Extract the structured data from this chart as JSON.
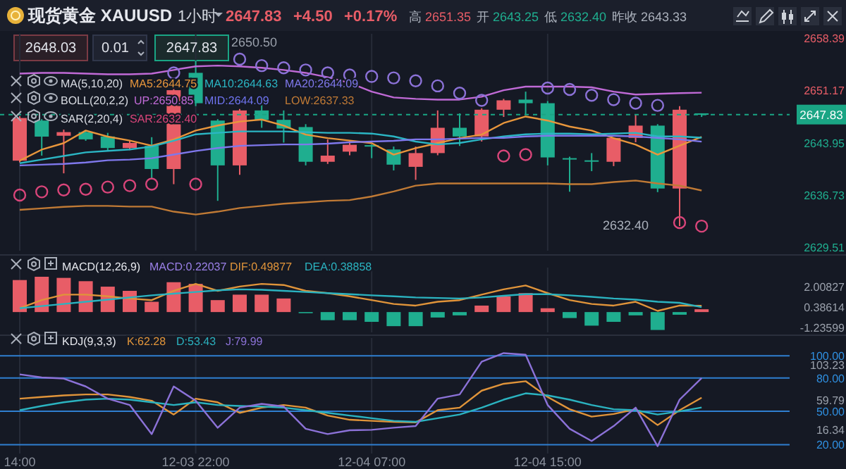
{
  "chart_data": [
    {
      "type": "candlestick",
      "title": "现货黄金 XAUUSD",
      "categories": [
        null,
        null,
        null,
        null,
        null,
        null,
        null,
        null,
        null,
        null,
        null,
        null,
        null,
        null,
        null,
        null,
        null,
        null,
        null,
        null,
        null,
        null,
        null,
        null,
        null,
        null,
        null,
        null,
        null,
        null,
        null,
        null
      ],
      "ohlc": [
        [
          2641.45,
          2647.6,
          2641.2,
          2647.35
        ],
        [
          2647.0,
          2647.2,
          2642.15,
          2644.78
        ],
        [
          2644.9,
          2645.75,
          2639.7,
          2645.4
        ],
        [
          2645.4,
          2645.6,
          2644.2,
          2644.4
        ],
        [
          2644.8,
          2645.3,
          2642.9,
          2643.2
        ],
        [
          2643.2,
          2644.3,
          2642.9,
          2643.9
        ],
        [
          2643.5,
          2644.7,
          2639.0,
          2640.3
        ],
        [
          2640.3,
          2651.5,
          2638.2,
          2651.2
        ],
        [
          2653.6,
          2655.3,
          2649.0,
          2649.4
        ],
        [
          2647.0,
          2647.2,
          2635.9,
          2640.8
        ],
        [
          2640.8,
          2648.6,
          2639.5,
          2648.4
        ],
        [
          2648.4,
          2649.5,
          2646.0,
          2647.1
        ],
        [
          2647.1,
          2648.4,
          2643.95,
          2645.9
        ],
        [
          2646.1,
          2646.5,
          2640.8,
          2641.3
        ],
        [
          2641.3,
          2644.4,
          2641.0,
          2642.15
        ],
        [
          2642.7,
          2644.2,
          2642.2,
          2643.65
        ],
        [
          2643.6,
          2643.7,
          2641.8,
          2643.4
        ],
        [
          2643.0,
          2643.4,
          2640.1,
          2640.9
        ],
        [
          2640.6,
          2643.4,
          2638.8,
          2642.5
        ],
        [
          2642.5,
          2648.4,
          2642.2,
          2646.0
        ],
        [
          2646.0,
          2648.0,
          2643.5,
          2644.8
        ],
        [
          2644.8,
          2648.7,
          2644.1,
          2648.5
        ],
        [
          2648.5,
          2650.0,
          2647.5,
          2649.8
        ],
        [
          2649.9,
          2651.0,
          2647.8,
          2649.4
        ],
        [
          2649.4,
          2649.7,
          2640.8,
          2641.9
        ],
        [
          2641.8,
          2642.0,
          2637.15,
          2641.7
        ],
        [
          2641.5,
          2642.5,
          2640.0,
          2641.4
        ],
        [
          2641.3,
          2644.6,
          2640.7,
          2644.6
        ],
        [
          2644.6,
          2647.8,
          2644.0,
          2646.3
        ],
        [
          2646.3,
          2646.5,
          2637.1,
          2637.6
        ],
        [
          2637.6,
          2649.0,
          2632.4,
          2648.5
        ],
        [
          2648.0,
          2648.0,
          2647.5,
          2647.83
        ]
      ],
      "ylim": [
        2629,
        2659
      ],
      "yticks": [
        2658.39,
        2651.17,
        2643.95,
        2636.73,
        2629.51
      ],
      "grid": "x",
      "tick_labels": "y",
      "ref_lines": [
        {
          "axis": "y",
          "value": 2647.83,
          "label": "2647.83",
          "color": "#1aa584",
          "line_style": "dashed"
        }
      ],
      "annotations": [
        "1小时",
        "2647.83",
        "+4.50",
        "+0.17%",
        "高 2651.35",
        "开 2643.25",
        "低 2632.40",
        "昨收 2643.33",
        "2648.03",
        "0.01",
        "2647.83",
        "MA(5,10,20)",
        "BOLL(20,2,2)",
        "SAR(2,20,4)",
        "MID:2644.09",
        "2650.50",
        "2632.40"
      ],
      "series": [
        {
          "type": "line",
          "name": "MA5:2644.75",
          "color": "#e8963c",
          "values": [
            2641.45,
            2642.98,
            2643.88,
            2645.62,
            2644.78,
            2644.23,
            2643.53,
            2644.37,
            2645.62,
            2646.31,
            2646.86,
            2647.14,
            2646.31,
            2645.06,
            2644.57,
            2644.23,
            2643.88,
            2642.28,
            2643.19,
            2643.88,
            2644.57,
            2645.06,
            2646.66,
            2647.56,
            2647.0,
            2646.17,
            2645.62,
            2644.57,
            2643.67,
            2642.28,
            2643.53,
            2644.75
          ]
        },
        {
          "type": "line",
          "name": "MA10:2644.63",
          "color": "#2bb6c4",
          "values": [
            2641.1,
            2641.6,
            2642.1,
            2642.6,
            2642.8,
            2643.0,
            2643.4,
            2644.2,
            2645.1,
            2645.3,
            2645.5,
            2645.5,
            2645.5,
            2645.4,
            2645.3,
            2645.3,
            2645.2,
            2644.8,
            2644.1,
            2643.7,
            2643.9,
            2644.4,
            2644.8,
            2645.1,
            2645.2,
            2645.2,
            2645.1,
            2645.2,
            2645.3,
            2644.8,
            2644.8,
            2644.63
          ]
        },
        {
          "type": "line",
          "name": "MA20:2644.09",
          "color": "#7f78ec",
          "values": [
            2640.8,
            2640.9,
            2641.0,
            2641.2,
            2641.5,
            2641.6,
            2641.8,
            2642.3,
            2642.8,
            2643.2,
            2643.5,
            2643.6,
            2643.7,
            2643.7,
            2643.8,
            2644.0,
            2644.1,
            2644.2,
            2644.4,
            2644.4,
            2644.5,
            2644.6,
            2644.6,
            2644.8,
            2644.9,
            2644.9,
            2644.9,
            2644.9,
            2644.8,
            2644.6,
            2644.4,
            2644.09
          ]
        },
        {
          "type": "line",
          "name": "UP:2650.85",
          "color": "#c06ad6",
          "values": [
            2653.5,
            2653.6,
            2653.6,
            2653.5,
            2653.4,
            2653.4,
            2653.5,
            2654.0,
            2654.5,
            2654.6,
            2654.5,
            2654.3,
            2654.0,
            2653.6,
            2653.0,
            2652.2,
            2651.0,
            2650.2,
            2650.0,
            2649.9,
            2649.9,
            2650.3,
            2651.2,
            2651.7,
            2651.7,
            2651.7,
            2651.6,
            2651.0,
            2650.6,
            2650.7,
            2650.8,
            2650.85
          ]
        },
        {
          "type": "line",
          "name": "LOW:2637.33",
          "color": "#c07a35",
          "values": [
            2634.65,
            2634.86,
            2635.07,
            2635.2,
            2635.2,
            2635.1,
            2635.1,
            2634.4,
            2634.0,
            2634.4,
            2634.9,
            2635.2,
            2635.5,
            2635.7,
            2635.9,
            2636.0,
            2636.5,
            2637.2,
            2638.0,
            2638.3,
            2638.3,
            2638.3,
            2638.3,
            2638.3,
            2638.3,
            2638.2,
            2638.2,
            2638.5,
            2638.7,
            2638.3,
            2638.0,
            2637.33
          ]
        },
        {
          "type": "scatter",
          "name": "SAR:2632.40",
          "color": "#d9457a",
          "marker": "circle",
          "colors": [
            "#d9457a",
            "#d9457a",
            "#d9457a",
            "#d9457a",
            "#d9457a",
            "#d9457a",
            "#d9457a",
            "#8c72d8",
            "#d9457a",
            null,
            "#8c72d8",
            "#8c72d8",
            "#8c72d8",
            "#8c72d8",
            "#8c72d8",
            "#8c72d8",
            "#8c72d8",
            "#8c72d8",
            "#8c72d8",
            "#8c72d8",
            "#8c72d8",
            "#8c72d8",
            "#d9457a",
            "#d9457a",
            "#8c72d8",
            "#8c72d8",
            "#8c72d8",
            "#8c72d8",
            "#8c72d8",
            "#8c72d8",
            "#d9457a",
            "#d9457a"
          ],
          "values": [
            2636.7,
            2637.15,
            2637.4,
            2637.5,
            2637.8,
            2638.0,
            2638.2,
            2653.6,
            2638.2,
            null,
            2655.5,
            2654.6,
            2654.3,
            2654.0,
            2653.6,
            2653.3,
            2653.1,
            2652.9,
            2652.5,
            2651.8,
            2650.8,
            2649.8,
            2642.1,
            2642.3,
            2651.5,
            2651.3,
            2650.5,
            2649.9,
            2649.4,
            2649.1,
            2632.9,
            2632.4
          ]
        }
      ]
    },
    {
      "type": "bar",
      "title": "MACD(12,26,9)",
      "categories": [
        null,
        null,
        null,
        null,
        null,
        null,
        null,
        null,
        null,
        null,
        null,
        null,
        null,
        null,
        null,
        null,
        null,
        null,
        null,
        null,
        null,
        null,
        null,
        null,
        null,
        null,
        null,
        null,
        null,
        null,
        null,
        null
      ],
      "ylim": [
        -1.6,
        3.5
      ],
      "yticks": [
        2.00827,
        0.38614,
        -1.23599
      ],
      "grid": "x",
      "tick_labels": "y",
      "series": [
        {
          "name": "MACD:0.22037",
          "color": "#9b80e8",
          "values": [
            2.52,
            2.78,
            2.69,
            2.43,
            2.0,
            1.67,
            0.81,
            2.35,
            2.22,
            0.94,
            1.37,
            1.37,
            1.07,
            -0.05,
            -0.64,
            -0.64,
            -0.77,
            -1.11,
            -1.11,
            -0.43,
            -0.26,
            0.51,
            1.24,
            1.49,
            0.3,
            -0.47,
            -1.07,
            -0.77,
            -0.26,
            -1.41,
            -0.21,
            0.22037
          ],
          "colors": [
            "#e85d67",
            "#e85d67",
            "#e85d67",
            "#e85d67",
            "#e85d67",
            "#e85d67",
            "#e85d67",
            "#e85d67",
            "#e85d67",
            "#e85d67",
            "#e85d67",
            "#e85d67",
            "#e85d67",
            "#1fae8f",
            "#1fae8f",
            "#1fae8f",
            "#1fae8f",
            "#1fae8f",
            "#1fae8f",
            "#1fae8f",
            "#1fae8f",
            "#e85d67",
            "#e85d67",
            "#e85d67",
            "#e85d67",
            "#1fae8f",
            "#1fae8f",
            "#1fae8f",
            "#1fae8f",
            "#1fae8f",
            "#1fae8f",
            "#e85d67"
          ]
        },
        {
          "type": "line",
          "name": "DIF:0.49877",
          "color": "#e0943a",
          "values": [
            0.3,
            0.94,
            1.37,
            1.37,
            1.24,
            1.07,
            0.94,
            1.67,
            2.22,
            1.67,
            2.01,
            2.22,
            2.13,
            1.67,
            1.49,
            1.24,
            0.94,
            0.64,
            0.51,
            0.81,
            0.94,
            1.37,
            1.79,
            2.09,
            1.49,
            0.94,
            0.64,
            0.51,
            0.81,
            0.09,
            0.51,
            0.49877
          ]
        },
        {
          "type": "line",
          "name": "DEA:0.38858",
          "color": "#2bb3c0",
          "values": [
            0.3,
            0.47,
            0.64,
            0.81,
            0.98,
            1.15,
            1.32,
            1.45,
            1.58,
            1.71,
            1.79,
            1.75,
            1.67,
            1.58,
            1.49,
            1.41,
            1.32,
            1.24,
            1.15,
            1.11,
            1.07,
            1.15,
            1.28,
            1.41,
            1.41,
            1.32,
            1.2,
            1.07,
            0.98,
            0.81,
            0.73,
            0.38858
          ]
        }
      ]
    },
    {
      "type": "line",
      "title": "KDJ(9,3,3)",
      "categories": [
        "14:00",
        null,
        null,
        null,
        null,
        null,
        null,
        null,
        "12-03 22:00",
        null,
        null,
        null,
        null,
        null,
        null,
        null,
        "12-04 07:00",
        null,
        null,
        null,
        null,
        null,
        null,
        null,
        "12-04 15:00",
        null,
        null,
        null,
        null,
        null,
        null,
        null
      ],
      "ylim": [
        12,
        116
      ],
      "yticks": [
        {
          "value": 100,
          "label": "100.00"
        },
        {
          "value": 80,
          "label": "80.00"
        },
        {
          "value": 50,
          "label": "50.00"
        },
        {
          "value": 20,
          "label": "20.00"
        }
      ],
      "grid": true,
      "annotations": [
        "103.23",
        "59.79",
        "16.34"
      ],
      "series": [
        {
          "name": "K:62.28",
          "color": "#e0943a",
          "values": [
            61.4,
            62.9,
            64.3,
            65.2,
            65.2,
            62.9,
            59.5,
            47.1,
            61.4,
            58.1,
            48.6,
            53.3,
            55.7,
            53.3,
            46.2,
            42.4,
            41.4,
            40.5,
            40.0,
            51.0,
            53.3,
            68.6,
            74.8,
            77.1,
            62.9,
            51.9,
            45.2,
            47.6,
            51.9,
            37.6,
            51.0,
            62.28
          ]
        },
        {
          "name": "D:53.43",
          "color": "#2bb3c0",
          "values": [
            51.0,
            54.8,
            58.1,
            60.5,
            61.4,
            60.5,
            58.1,
            55.7,
            58.1,
            55.7,
            54.8,
            54.3,
            53.3,
            51.0,
            48.6,
            46.2,
            43.8,
            41.4,
            40.5,
            43.8,
            47.1,
            53.3,
            60.5,
            66.2,
            64.3,
            60.5,
            55.7,
            51.9,
            51.0,
            47.1,
            50.0,
            53.43
          ]
        },
        {
          "name": "J:79.99",
          "color": "#8c72d8",
          "values": [
            83.3,
            80.5,
            79.5,
            72.4,
            61.4,
            55.7,
            29.5,
            72.4,
            59.5,
            35.2,
            53.3,
            56.7,
            54.3,
            34.3,
            29.5,
            32.9,
            33.3,
            35.2,
            36.7,
            61.4,
            65.2,
            94.7,
            102.4,
            100.9,
            55.7,
            34.3,
            23.3,
            36.7,
            53.3,
            18.6,
            60.5,
            79.99
          ]
        }
      ]
    }
  ]
}
